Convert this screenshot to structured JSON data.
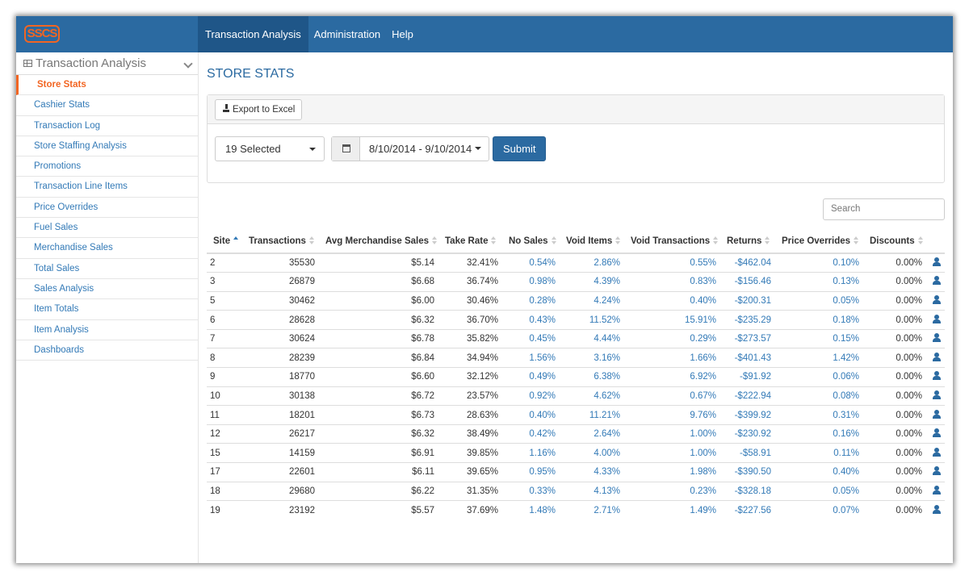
{
  "navbar": {
    "logo": "SSCS",
    "menu": [
      "Transaction Analysis",
      "Administration",
      "Help"
    ]
  },
  "sidebar": {
    "section": "Transaction Analysis",
    "items": [
      "Store Stats",
      "Cashier Stats",
      "Transaction Log",
      "Store Staffing Analysis",
      "Promotions",
      "Transaction Line Items",
      "Price Overrides",
      "Fuel Sales",
      "Merchandise Sales",
      "Total Sales",
      "Sales Analysis",
      "Item Totals",
      "Item Analysis",
      "Dashboards"
    ]
  },
  "page": {
    "title": "STORE STATS",
    "export_button": "Export to Excel",
    "store_select": "19 Selected",
    "date_range": "8/10/2014 - 9/10/2014",
    "submit": "Submit",
    "search_placeholder": "Search"
  },
  "table": {
    "columns": [
      "Site",
      "Transactions",
      "Avg Merchandise Sales",
      "Take Rate",
      "No Sales",
      "Void Items",
      "Void Transactions",
      "Returns",
      "Price Overrides",
      "Discounts"
    ],
    "rows": [
      [
        "2",
        "35530",
        "$5.14",
        "32.41%",
        "0.54%",
        "2.86%",
        "0.55%",
        "-$462.04",
        "0.10%",
        "0.00%"
      ],
      [
        "3",
        "26879",
        "$6.68",
        "36.74%",
        "0.98%",
        "4.39%",
        "0.83%",
        "-$156.46",
        "0.13%",
        "0.00%"
      ],
      [
        "5",
        "30462",
        "$6.00",
        "30.46%",
        "0.28%",
        "4.24%",
        "0.40%",
        "-$200.31",
        "0.05%",
        "0.00%"
      ],
      [
        "6",
        "28628",
        "$6.32",
        "36.70%",
        "0.43%",
        "11.52%",
        "15.91%",
        "-$235.29",
        "0.18%",
        "0.00%"
      ],
      [
        "7",
        "30624",
        "$6.78",
        "35.82%",
        "0.45%",
        "4.44%",
        "0.29%",
        "-$273.57",
        "0.15%",
        "0.00%"
      ],
      [
        "8",
        "28239",
        "$6.84",
        "34.94%",
        "1.56%",
        "3.16%",
        "1.66%",
        "-$401.43",
        "1.42%",
        "0.00%"
      ],
      [
        "9",
        "18770",
        "$6.60",
        "32.12%",
        "0.49%",
        "6.38%",
        "6.92%",
        "-$91.92",
        "0.06%",
        "0.00%"
      ],
      [
        "10",
        "30138",
        "$6.72",
        "23.57%",
        "0.92%",
        "4.62%",
        "0.67%",
        "-$222.94",
        "0.08%",
        "0.00%"
      ],
      [
        "11",
        "18201",
        "$6.73",
        "28.63%",
        "0.40%",
        "11.21%",
        "9.76%",
        "-$399.92",
        "0.31%",
        "0.00%"
      ],
      [
        "12",
        "26217",
        "$6.32",
        "38.49%",
        "0.42%",
        "2.64%",
        "1.00%",
        "-$230.92",
        "0.16%",
        "0.00%"
      ],
      [
        "15",
        "14159",
        "$6.91",
        "39.85%",
        "1.16%",
        "4.00%",
        "1.00%",
        "-$58.91",
        "0.11%",
        "0.00%"
      ],
      [
        "17",
        "22601",
        "$6.11",
        "39.65%",
        "0.95%",
        "4.33%",
        "1.98%",
        "-$390.50",
        "0.40%",
        "0.00%"
      ],
      [
        "18",
        "29680",
        "$6.22",
        "31.35%",
        "0.33%",
        "4.13%",
        "0.23%",
        "-$328.18",
        "0.05%",
        "0.00%"
      ],
      [
        "19",
        "23192",
        "$5.57",
        "37.69%",
        "1.48%",
        "2.71%",
        "1.49%",
        "-$227.56",
        "0.07%",
        "0.00%"
      ]
    ]
  }
}
